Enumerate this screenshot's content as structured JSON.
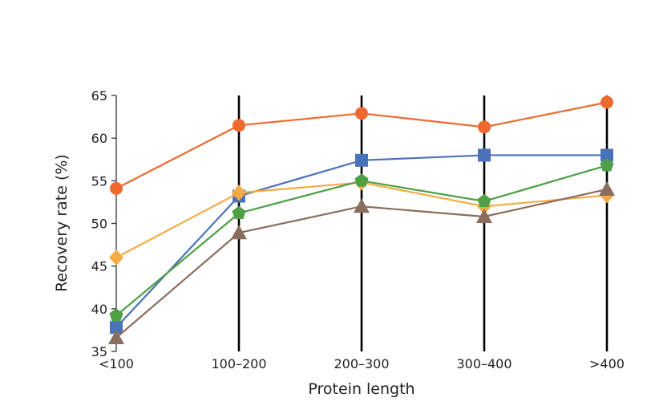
{
  "chart_data": {
    "type": "line",
    "xlabel": "Protein length",
    "ylabel": "Recovery rate (%)",
    "categories": [
      "<100",
      "100–200",
      "200–300",
      "300–400",
      ">400"
    ],
    "ylim": [
      35,
      65
    ],
    "yticks": [
      35,
      40,
      45,
      50,
      55,
      60,
      65
    ],
    "vertical_lines_at_categories": true,
    "legend": "none",
    "series": [
      {
        "color": "#ee6a2f",
        "marker": "circle",
        "values": [
          54.1,
          61.5,
          62.9,
          61.3,
          64.2
        ]
      },
      {
        "color": "#4a72b8",
        "marker": "square",
        "values": [
          37.8,
          53.2,
          57.4,
          58.0,
          58.0
        ]
      },
      {
        "color": "#f5ab45",
        "marker": "diamond",
        "values": [
          46.0,
          53.6,
          54.8,
          52.0,
          53.3
        ]
      },
      {
        "color": "#4e9f45",
        "marker": "pentagon",
        "values": [
          39.2,
          51.2,
          55.0,
          52.6,
          56.8
        ]
      },
      {
        "color": "#8a6e5d",
        "marker": "triangle",
        "values": [
          36.6,
          48.9,
          52.0,
          50.8,
          54.0
        ]
      }
    ]
  }
}
